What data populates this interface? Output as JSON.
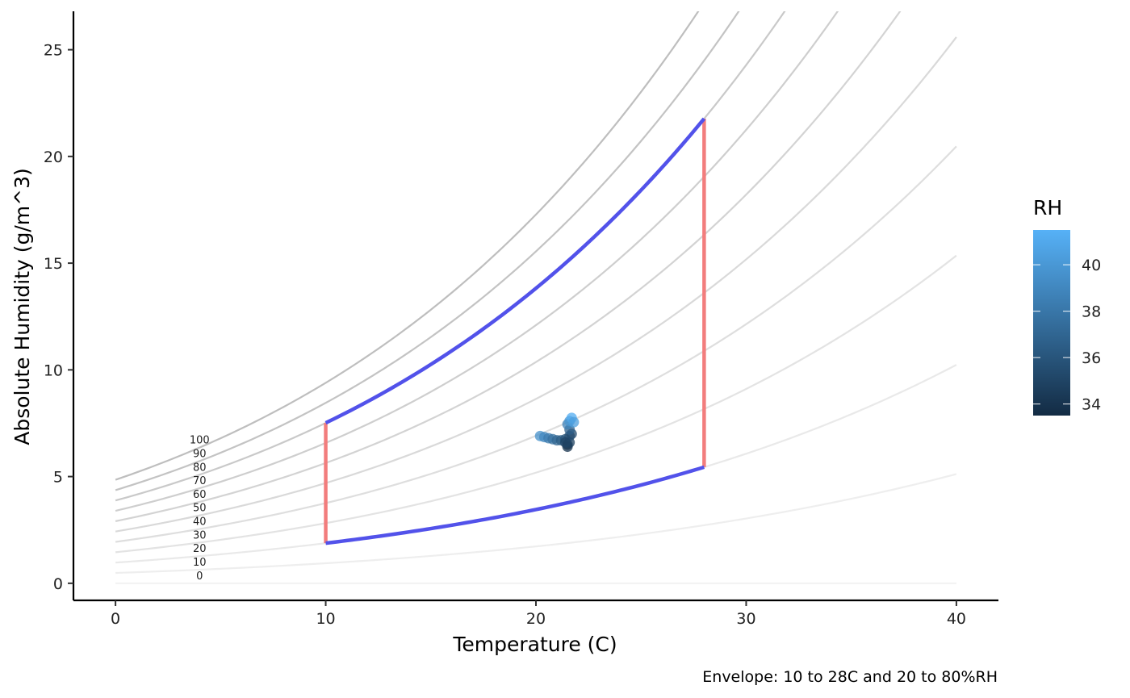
{
  "chart_data": {
    "type": "line",
    "xlabel": "Temperature (C)",
    "ylabel": "Absolute Humidity (g/m^3)",
    "caption": "Envelope: 10 to 28C and 20 to 80%RH",
    "xlim": [
      -2,
      42
    ],
    "ylim": [
      -0.8,
      26.8
    ],
    "x_ticks": [
      0,
      10,
      20,
      30,
      40
    ],
    "y_ticks": [
      0,
      5,
      10,
      15,
      20,
      25
    ],
    "grid": false,
    "rh_curves": {
      "levels": [
        0,
        10,
        20,
        30,
        40,
        50,
        60,
        70,
        80,
        90,
        100
      ],
      "x_range": [
        0,
        40
      ],
      "label_x": 4,
      "color": "#9e9e9e",
      "note": "absolute humidity at each relative humidity level vs temperature"
    },
    "envelope": {
      "temp_range": [
        10,
        28
      ],
      "rh_range": [
        20,
        80
      ],
      "rh_bound_color": "#5252ea",
      "temp_bound_color": "#f27d7d"
    },
    "points": [
      {
        "x": 20.2,
        "y": 6.9,
        "rh": 39.5
      },
      {
        "x": 20.4,
        "y": 6.85,
        "rh": 39.0
      },
      {
        "x": 20.6,
        "y": 6.8,
        "rh": 38.2
      },
      {
        "x": 20.8,
        "y": 6.75,
        "rh": 37.6
      },
      {
        "x": 21.0,
        "y": 6.7,
        "rh": 37.0
      },
      {
        "x": 21.2,
        "y": 6.7,
        "rh": 36.4
      },
      {
        "x": 21.4,
        "y": 6.75,
        "rh": 35.8
      },
      {
        "x": 21.5,
        "y": 6.5,
        "rh": 34.6
      },
      {
        "x": 21.5,
        "y": 6.4,
        "rh": 34.0
      },
      {
        "x": 21.6,
        "y": 6.6,
        "rh": 34.8
      },
      {
        "x": 21.6,
        "y": 6.9,
        "rh": 35.6
      },
      {
        "x": 21.7,
        "y": 7.0,
        "rh": 35.4
      },
      {
        "x": 21.6,
        "y": 7.2,
        "rh": 36.6
      },
      {
        "x": 21.5,
        "y": 7.45,
        "rh": 38.6
      },
      {
        "x": 21.6,
        "y": 7.6,
        "rh": 39.8
      },
      {
        "x": 21.7,
        "y": 7.75,
        "rh": 41.2
      },
      {
        "x": 21.8,
        "y": 7.55,
        "rh": 40.4
      },
      {
        "x": 21.4,
        "y": 6.6,
        "rh": 35.0
      }
    ],
    "legend": {
      "title": "RH",
      "range": [
        33.5,
        41.5
      ],
      "ticks": [
        34,
        36,
        38,
        40
      ],
      "color_low": "#132b43",
      "color_high": "#56b1f7",
      "position": "right"
    }
  }
}
